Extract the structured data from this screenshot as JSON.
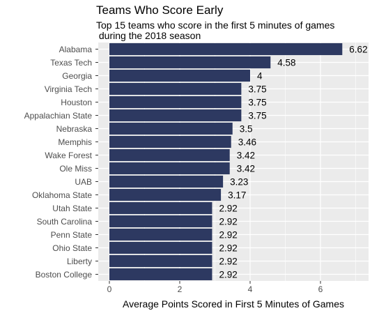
{
  "chart_data": {
    "type": "bar",
    "orientation": "horizontal",
    "title": "Teams Who Score Early",
    "subtitle": "Top 15 teams who score in the first 5 minutes of games\n during the 2018 season",
    "xlabel": "Average Points Scored in First 5 Minutes of Games",
    "ylabel": "",
    "xlim": [
      0,
      7.3
    ],
    "xticks": [
      0,
      2,
      4,
      6
    ],
    "grid": true,
    "bar_color": "#2d3961",
    "panel_color": "#ebebeb",
    "grid_color": "#ffffff",
    "categories": [
      "Alabama",
      "Texas Tech",
      "Georgia",
      "Virginia Tech",
      "Houston",
      "Appalachian State",
      "Nebraska",
      "Memphis",
      "Wake Forest",
      "Ole Miss",
      "UAB",
      "Oklahoma State",
      "Utah State",
      "South Carolina",
      "Penn State",
      "Ohio State",
      "Liberty",
      "Boston College"
    ],
    "values": [
      6.62,
      4.58,
      4,
      3.75,
      3.75,
      3.75,
      3.5,
      3.46,
      3.42,
      3.42,
      3.23,
      3.17,
      2.92,
      2.92,
      2.92,
      2.92,
      2.92,
      2.92
    ],
    "labels": [
      "6.62",
      "4.58",
      "4",
      "3.75",
      "3.75",
      "3.75",
      "3.5",
      "3.46",
      "3.42",
      "3.42",
      "3.23",
      "3.17",
      "2.92",
      "2.92",
      "2.92",
      "2.92",
      "2.92",
      "2.92"
    ]
  }
}
